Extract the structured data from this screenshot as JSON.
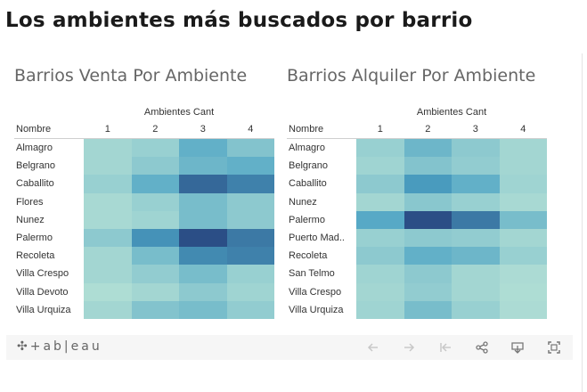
{
  "page": {
    "title": "Los ambientes más buscados por barrio"
  },
  "colors": {
    "scale": [
      "#b9e3d6",
      "#2b4e86"
    ],
    "text": "#333333",
    "toolbar_bg": "#f6f6f6"
  },
  "chart_data": [
    {
      "type": "heatmap",
      "title": "Barrios Venta Por Ambiente",
      "row_header": "Nombre",
      "column_header": "Ambientes Cant",
      "columns": [
        "1",
        "2",
        "3",
        "4"
      ],
      "rows": [
        "Almagro",
        "Belgrano",
        "Caballito",
        "Flores",
        "Nunez",
        "Palermo",
        "Recoleta",
        "Villa Crespo",
        "Villa Devoto",
        "Villa Urquiza"
      ],
      "values": [
        [
          0.1,
          0.15,
          0.4,
          0.25
        ],
        [
          0.1,
          0.2,
          0.35,
          0.4
        ],
        [
          0.15,
          0.4,
          0.85,
          0.7
        ],
        [
          0.08,
          0.15,
          0.3,
          0.2
        ],
        [
          0.08,
          0.12,
          0.3,
          0.2
        ],
        [
          0.2,
          0.6,
          1.0,
          0.75
        ],
        [
          0.1,
          0.3,
          0.65,
          0.7
        ],
        [
          0.1,
          0.18,
          0.3,
          0.15
        ],
        [
          0.05,
          0.1,
          0.2,
          0.12
        ],
        [
          0.1,
          0.25,
          0.3,
          0.18
        ]
      ]
    },
    {
      "type": "heatmap",
      "title": "Barrios Alquiler Por Ambiente",
      "row_header": "Nombre",
      "column_header": "Ambientes Cant",
      "columns": [
        "1",
        "2",
        "3",
        "4"
      ],
      "rows": [
        "Almagro",
        "Belgrano",
        "Caballito",
        "Nunez",
        "Palermo",
        "Puerto Mad..",
        "Recoleta",
        "San Telmo",
        "Villa Crespo",
        "Villa Urquiza"
      ],
      "values": [
        [
          0.15,
          0.35,
          0.2,
          0.1
        ],
        [
          0.12,
          0.25,
          0.18,
          0.1
        ],
        [
          0.2,
          0.55,
          0.4,
          0.12
        ],
        [
          0.1,
          0.22,
          0.15,
          0.08
        ],
        [
          0.45,
          1.0,
          0.75,
          0.3
        ],
        [
          0.15,
          0.2,
          0.18,
          0.1
        ],
        [
          0.2,
          0.4,
          0.35,
          0.15
        ],
        [
          0.12,
          0.2,
          0.1,
          0.06
        ],
        [
          0.1,
          0.18,
          0.1,
          0.05
        ],
        [
          0.12,
          0.3,
          0.15,
          0.06
        ]
      ]
    }
  ],
  "toolbar": {
    "logo_text": "+ab|eau",
    "icons": [
      "undo-icon",
      "redo-icon",
      "revert-icon",
      "share-icon",
      "download-icon",
      "fullscreen-icon"
    ]
  }
}
